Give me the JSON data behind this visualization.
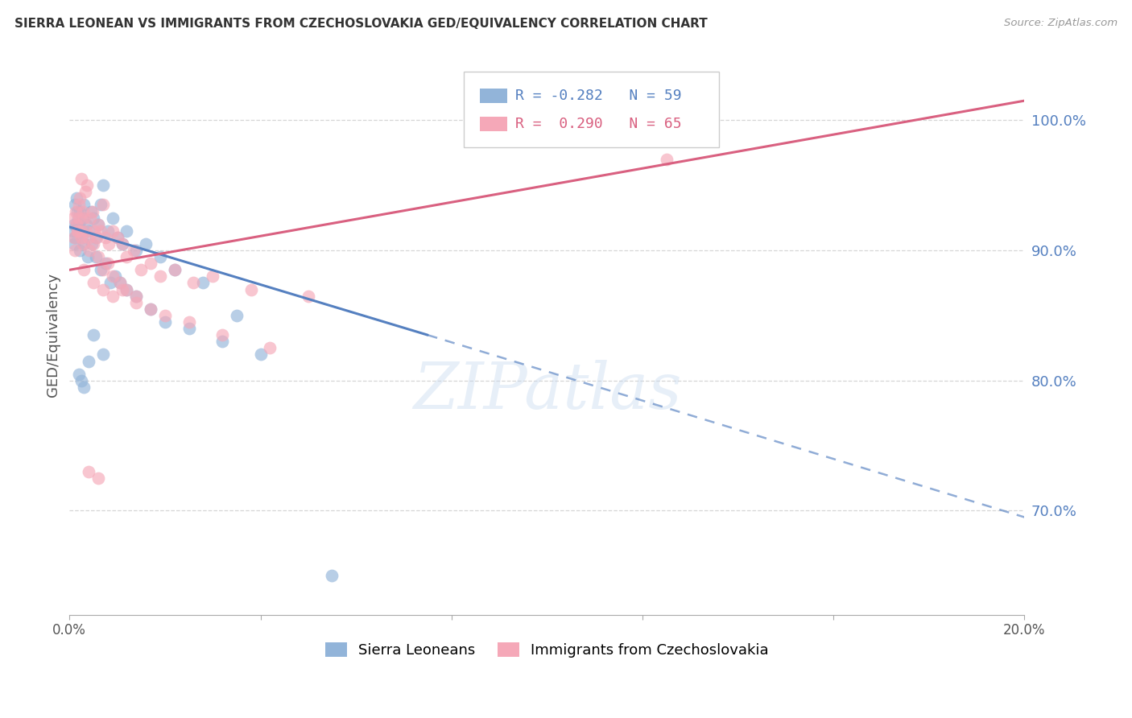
{
  "title": "SIERRA LEONEAN VS IMMIGRANTS FROM CZECHOSLOVAKIA GED/EQUIVALENCY CORRELATION CHART",
  "source": "Source: ZipAtlas.com",
  "ylabel": "GED/Equivalency",
  "legend_blue_r": "-0.282",
  "legend_blue_n": "59",
  "legend_pink_r": "0.290",
  "legend_pink_n": "65",
  "legend_label_blue": "Sierra Leoneans",
  "legend_label_pink": "Immigrants from Czechoslovakia",
  "blue_color": "#92b4d9",
  "pink_color": "#f5a8b8",
  "blue_line_color": "#5580c0",
  "pink_line_color": "#d96080",
  "blue_scatter_x": [
    0.08,
    0.1,
    0.12,
    0.14,
    0.16,
    0.18,
    0.2,
    0.22,
    0.25,
    0.28,
    0.3,
    0.35,
    0.4,
    0.45,
    0.5,
    0.55,
    0.6,
    0.65,
    0.7,
    0.8,
    0.9,
    1.0,
    1.1,
    1.2,
    1.4,
    1.6,
    1.9,
    2.2,
    2.8,
    3.5,
    0.1,
    0.12,
    0.15,
    0.18,
    0.22,
    0.26,
    0.3,
    0.38,
    0.46,
    0.55,
    0.65,
    0.75,
    0.85,
    0.95,
    1.05,
    1.2,
    1.4,
    1.7,
    2.0,
    2.5,
    3.2,
    4.0,
    0.2,
    0.25,
    0.3,
    0.4,
    0.5,
    0.7,
    5.5
  ],
  "blue_scatter_y": [
    91.5,
    92.0,
    93.5,
    94.0,
    93.0,
    92.5,
    92.0,
    93.0,
    91.5,
    92.5,
    93.5,
    92.0,
    91.5,
    93.0,
    92.5,
    91.0,
    92.0,
    93.5,
    95.0,
    91.5,
    92.5,
    91.0,
    90.5,
    91.5,
    90.0,
    90.5,
    89.5,
    88.5,
    87.5,
    85.0,
    90.5,
    91.0,
    92.0,
    91.5,
    90.0,
    91.0,
    90.5,
    89.5,
    90.5,
    89.5,
    88.5,
    89.0,
    87.5,
    88.0,
    87.5,
    87.0,
    86.5,
    85.5,
    84.5,
    84.0,
    83.0,
    82.0,
    80.5,
    80.0,
    79.5,
    81.5,
    83.5,
    82.0,
    65.0
  ],
  "pink_scatter_x": [
    0.08,
    0.1,
    0.13,
    0.15,
    0.18,
    0.2,
    0.22,
    0.25,
    0.28,
    0.3,
    0.33,
    0.36,
    0.4,
    0.44,
    0.48,
    0.52,
    0.56,
    0.6,
    0.65,
    0.7,
    0.76,
    0.82,
    0.9,
    1.0,
    1.1,
    1.2,
    1.35,
    1.5,
    1.7,
    1.9,
    2.2,
    2.6,
    3.0,
    3.8,
    5.0,
    0.12,
    0.16,
    0.2,
    0.24,
    0.28,
    0.35,
    0.42,
    0.5,
    0.6,
    0.7,
    0.8,
    0.9,
    1.05,
    1.2,
    1.4,
    1.7,
    2.0,
    2.5,
    3.2,
    4.2,
    0.3,
    0.5,
    0.7,
    0.9,
    1.1,
    1.4,
    0.4,
    0.6,
    0.25,
    12.5
  ],
  "pink_scatter_y": [
    92.5,
    91.0,
    93.0,
    92.0,
    91.5,
    93.5,
    94.0,
    91.5,
    93.0,
    92.5,
    94.5,
    95.0,
    91.0,
    92.5,
    93.0,
    91.5,
    91.0,
    92.0,
    91.5,
    93.5,
    91.0,
    90.5,
    91.5,
    91.0,
    90.5,
    89.5,
    90.0,
    88.5,
    89.0,
    88.0,
    88.5,
    87.5,
    88.0,
    87.0,
    86.5,
    90.0,
    91.5,
    92.5,
    91.0,
    90.5,
    91.5,
    90.0,
    90.5,
    89.5,
    88.5,
    89.0,
    88.0,
    87.5,
    87.0,
    86.5,
    85.5,
    85.0,
    84.5,
    83.5,
    82.5,
    88.5,
    87.5,
    87.0,
    86.5,
    87.0,
    86.0,
    73.0,
    72.5,
    95.5,
    97.0
  ],
  "xmin": 0.0,
  "xmax": 20.0,
  "ymin": 62.0,
  "ymax": 105.0,
  "blue_reg_x0": 0.0,
  "blue_reg_y0": 91.8,
  "blue_solid_x1": 7.5,
  "blue_solid_y1": 83.5,
  "blue_dash_x1": 20.0,
  "blue_dash_y1": 69.5,
  "pink_reg_x0": 0.0,
  "pink_reg_y0": 88.5,
  "pink_reg_x1": 20.0,
  "pink_reg_y1": 101.5,
  "yticks": [
    70.0,
    80.0,
    90.0,
    100.0
  ],
  "xtick_positions": [
    0.0,
    4.0,
    8.0,
    12.0,
    16.0,
    20.0
  ],
  "xtick_labels": [
    "0.0%",
    "",
    "",
    "",
    "",
    "20.0%"
  ]
}
